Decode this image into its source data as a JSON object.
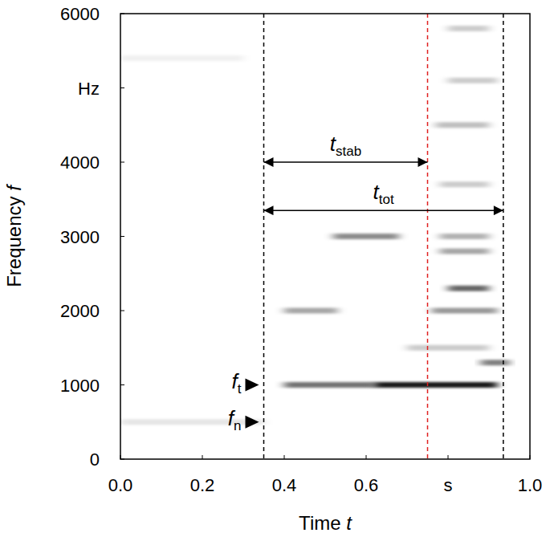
{
  "chart_data": {
    "type": "spectrogram",
    "x_label": "Time t",
    "y_label": "Frequency f",
    "xlim": [
      0,
      1
    ],
    "ylim": [
      0,
      6000
    ],
    "xticks": [
      {
        "value": 0,
        "label": "0.0"
      },
      {
        "value": 0.2,
        "label": "0.2"
      },
      {
        "value": 0.4,
        "label": "0.4"
      },
      {
        "value": 0.6,
        "label": "0.6"
      },
      {
        "value": 0.8,
        "label": "s"
      },
      {
        "value": 1,
        "label": "1.0"
      }
    ],
    "yticks": [
      0,
      1000,
      2000,
      3000,
      4000,
      {
        "value": 5000,
        "label": "Hz"
      },
      6000
    ],
    "bands": [
      {
        "t0": 0.0,
        "t1": 0.35,
        "f": 500,
        "level": 0.1
      },
      {
        "t0": 0.0,
        "t1": 0.3,
        "f": 5400,
        "level": 0.06
      },
      {
        "t0": 0.4,
        "t1": 0.62,
        "f": 1000,
        "level": 0.55
      },
      {
        "t0": 0.62,
        "t1": 0.92,
        "f": 1000,
        "level": 0.9
      },
      {
        "t0": 0.4,
        "t1": 0.53,
        "f": 2000,
        "level": 0.35
      },
      {
        "t0": 0.76,
        "t1": 0.92,
        "f": 2000,
        "level": 0.4
      },
      {
        "t0": 0.52,
        "t1": 0.68,
        "f": 3000,
        "level": 0.45
      },
      {
        "t0": 0.78,
        "t1": 0.9,
        "f": 3000,
        "level": 0.3
      },
      {
        "t0": 0.8,
        "t1": 0.9,
        "f": 2300,
        "level": 0.6
      },
      {
        "t0": 0.88,
        "t1": 0.95,
        "f": 1300,
        "level": 0.5
      },
      {
        "t0": 0.7,
        "t1": 0.9,
        "f": 1500,
        "level": 0.2
      },
      {
        "t0": 0.78,
        "t1": 0.9,
        "f": 2800,
        "level": 0.35
      },
      {
        "t0": 0.77,
        "t1": 0.9,
        "f": 4500,
        "level": 0.25
      },
      {
        "t0": 0.78,
        "t1": 0.9,
        "f": 3700,
        "level": 0.2
      },
      {
        "t0": 0.8,
        "t1": 0.92,
        "f": 5100,
        "level": 0.2
      },
      {
        "t0": 0.8,
        "t1": 0.9,
        "f": 5800,
        "level": 0.2
      }
    ],
    "vlines": [
      {
        "x": 0.35,
        "color": "#000000",
        "line_style": "dashed"
      },
      {
        "x": 0.75,
        "color": "#e02020",
        "line_style": "dashed"
      },
      {
        "x": 0.935,
        "color": "#000000",
        "line_style": "dashed"
      }
    ],
    "intervals": [
      {
        "symbol": "t",
        "subscript": "stab",
        "start": 0.35,
        "end": 0.75,
        "y": 4000
      },
      {
        "symbol": "t",
        "subscript": "tot",
        "start": 0.35,
        "end": 0.935,
        "y": 3350
      }
    ],
    "frequency_markers": [
      {
        "symbol": "f",
        "subscript": "t",
        "f": 1000
      },
      {
        "symbol": "f",
        "subscript": "n",
        "f": 500
      }
    ]
  }
}
